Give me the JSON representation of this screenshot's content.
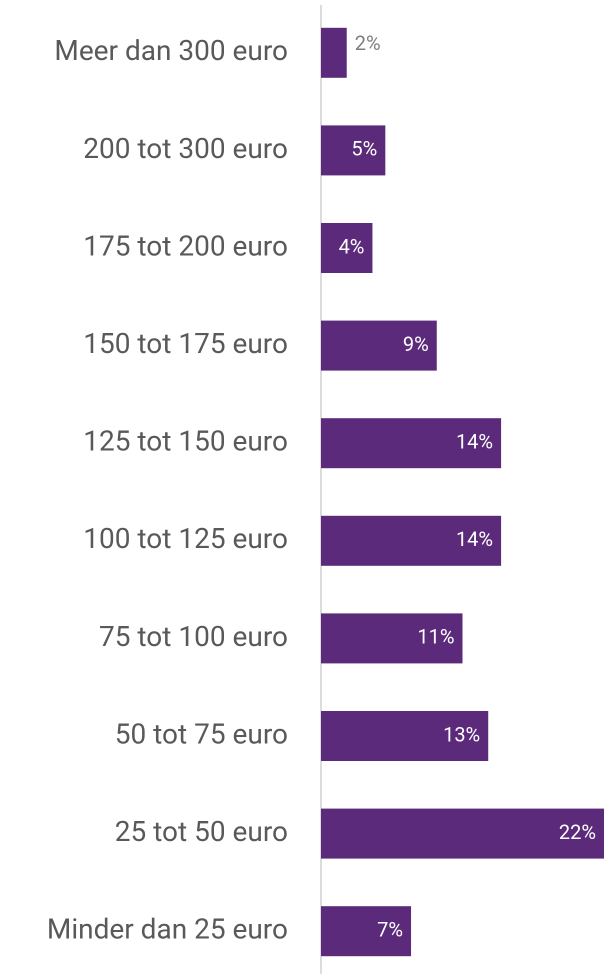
{
  "chart_data": {
    "type": "barh",
    "categories": [
      "Meer dan 300 euro",
      "200 tot 300 euro",
      "175 tot 200 euro",
      "150 tot 175 euro",
      "125 tot 150 euro",
      "100 tot 125 euro",
      "75 tot 100 euro",
      "50 tot 75 euro",
      "25 tot 50 euro",
      "Minder dan 25 euro"
    ],
    "values": [
      2,
      5,
      4,
      9,
      14,
      14,
      11,
      13,
      22,
      7
    ],
    "value_labels": [
      "2%",
      "5%",
      "4%",
      "9%",
      "14%",
      "14%",
      "11%",
      "13%",
      "22%",
      "7%"
    ],
    "color": "#5c2a7a",
    "xlim": [
      0,
      22
    ]
  }
}
